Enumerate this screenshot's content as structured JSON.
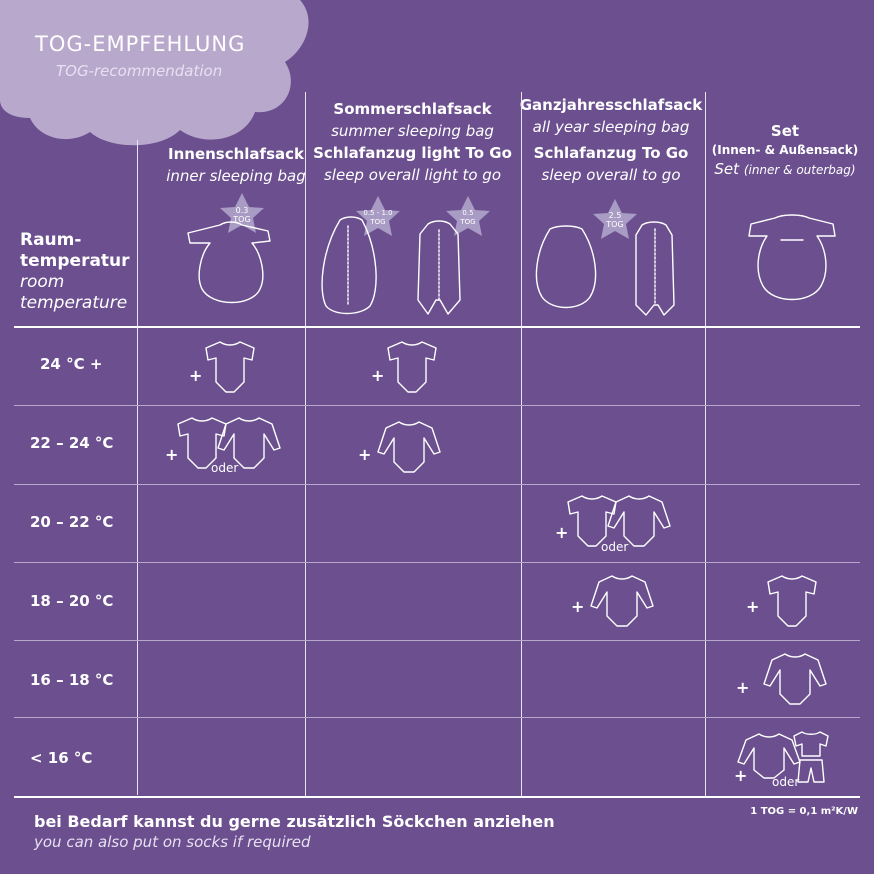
{
  "title": "TOG-EMPFEHLUNG",
  "subtitle": "TOG-recommendation",
  "room_temp": {
    "de_1": "Raum-",
    "de_2": "temperatur",
    "en_1": "room",
    "en_2": "temperature"
  },
  "columns": [
    {
      "top_de": "",
      "top_en": "",
      "de": "Innenschlafsack",
      "en": "inner sleeping bag",
      "tog": "0.3"
    },
    {
      "top_de": "Sommerschlafsack",
      "top_en": "summer sleeping bag",
      "de": "Schlafanzug light To Go",
      "en": "sleep overall light to go",
      "tog_a": "0.5 - 1.0",
      "tog_b": "0.5"
    },
    {
      "top_de": "Ganzjahresschlafsack",
      "top_en": "all year sleeping bag",
      "de": "Schlafanzug To Go",
      "en": "sleep overall to go",
      "tog": "2.5"
    },
    {
      "de": "Set",
      "de_sub": "(Innen- & Außensack)",
      "en": "Set",
      "en_sub": "(inner & outerbag)"
    }
  ],
  "tog_unit": "TOG",
  "rows": [
    "24 °C +",
    "22 – 24 °C",
    "20 – 22 °C",
    "18 – 20 °C",
    "16 – 18 °C",
    "< 16 °C"
  ],
  "plus": "+",
  "oder": "oder",
  "footer": {
    "de": "bei Bedarf kannst du gerne zusätzlich Söckchen anziehen",
    "en": "you can also put on socks if required"
  },
  "tog_note": "1 TOG = 0,1 m²K/W",
  "colors": {
    "background": "#6b4f8e",
    "cloud": "#b8a8cc",
    "star": "#a89bc4"
  }
}
